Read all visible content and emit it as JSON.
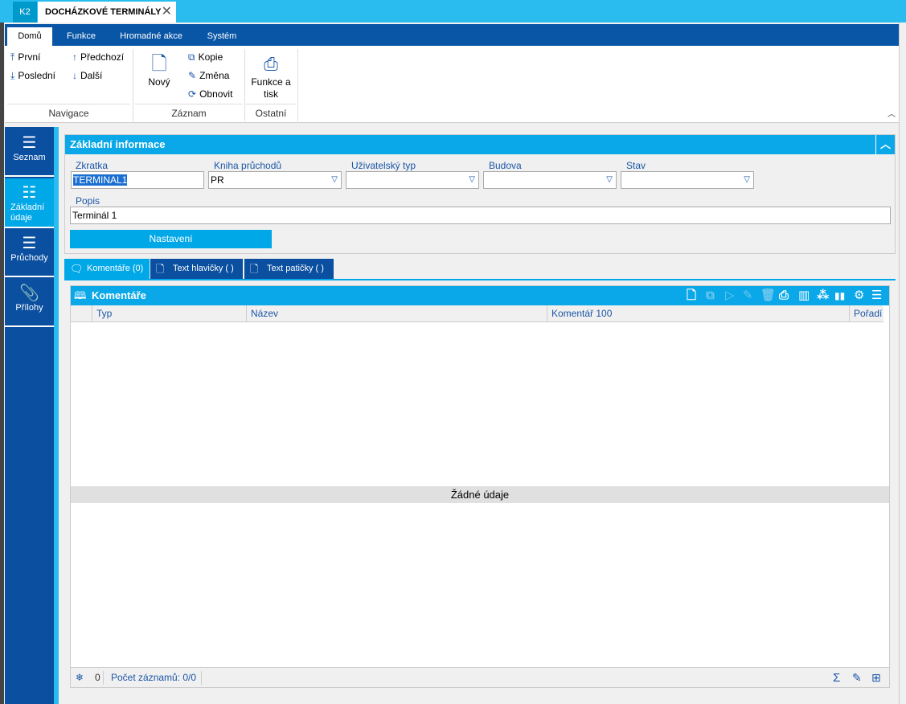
{
  "window": {
    "app": "K2",
    "tab_title": "DOCHÁZKOVÉ TERMINÁLY",
    "close_icon": "close-icon"
  },
  "ribbon": {
    "tabs": [
      "Domů",
      "Funkce",
      "Hromadné akce",
      "Systém"
    ],
    "active_tab": "Domů",
    "navigace": {
      "label": "Navigace",
      "first": "První",
      "last": "Poslední",
      "prev": "Předchozí",
      "next": "Další"
    },
    "zaznam": {
      "label": "Záznam",
      "new": "Nový",
      "copy": "Kopie",
      "edit": "Změna",
      "refresh": "Obnovit"
    },
    "ostatni": {
      "label": "Ostatní",
      "print_line1": "Funkce a",
      "print_line2": "tisk"
    }
  },
  "sidebar": {
    "items": [
      {
        "label": "Seznam"
      },
      {
        "label1": "Základní",
        "label2": "údaje",
        "active": true
      },
      {
        "label": "Průchody"
      },
      {
        "label": "Přílohy"
      }
    ]
  },
  "info": {
    "title": "Základní informace",
    "fields": {
      "zkratka": {
        "label": "Zkratka",
        "value": "TERMINAL1"
      },
      "kniha": {
        "label": "Kniha průchodů",
        "value": "PR"
      },
      "typ": {
        "label": "Uživatelský typ",
        "value": ""
      },
      "budova": {
        "label": "Budova",
        "value": ""
      },
      "stav": {
        "label": "Stav",
        "value": ""
      },
      "popis": {
        "label": "Popis",
        "value": "Terminál 1"
      }
    },
    "settings_button": "Nastavení"
  },
  "page_tabs": [
    {
      "label": "Komentáře (0)",
      "active": true
    },
    {
      "label": "Text hlavičky ( )"
    },
    {
      "label": "Text patičky ( )"
    }
  ],
  "grid": {
    "title": "Komentáře",
    "columns": [
      "Typ",
      "Název",
      "Komentář 100",
      "Pořadí"
    ],
    "empty_text": "Žádné údaje",
    "footer": {
      "selected": "0",
      "count": "Počet záznamů: 0/0"
    }
  },
  "colors": {
    "accent": "#0aa8e8",
    "dark": "#0a4fa0"
  }
}
